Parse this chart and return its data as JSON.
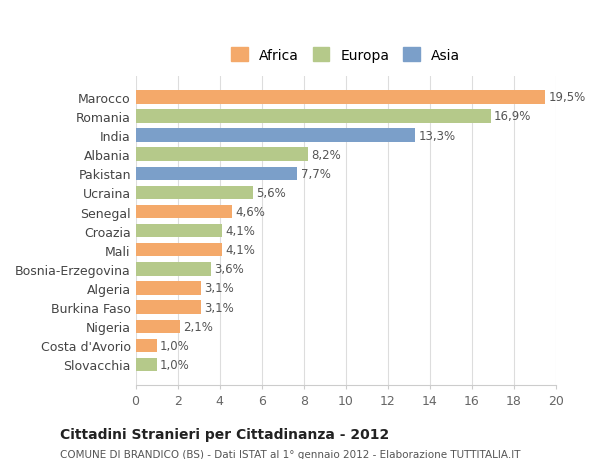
{
  "countries": [
    "Marocco",
    "Romania",
    "India",
    "Albania",
    "Pakistan",
    "Ucraina",
    "Senegal",
    "Croazia",
    "Mali",
    "Bosnia-Erzegovina",
    "Algeria",
    "Burkina Faso",
    "Nigeria",
    "Costa d'Avorio",
    "Slovacchia"
  ],
  "values": [
    19.5,
    16.9,
    13.3,
    8.2,
    7.7,
    5.6,
    4.6,
    4.1,
    4.1,
    3.6,
    3.1,
    3.1,
    2.1,
    1.0,
    1.0
  ],
  "labels": [
    "19,5%",
    "16,9%",
    "13,3%",
    "8,2%",
    "7,7%",
    "5,6%",
    "4,6%",
    "4,1%",
    "4,1%",
    "3,6%",
    "3,1%",
    "3,1%",
    "2,1%",
    "1,0%",
    "1,0%"
  ],
  "continents": [
    "Africa",
    "Europa",
    "Asia",
    "Europa",
    "Asia",
    "Europa",
    "Africa",
    "Europa",
    "Africa",
    "Europa",
    "Africa",
    "Africa",
    "Africa",
    "Africa",
    "Europa"
  ],
  "colors": {
    "Africa": "#F4A96A",
    "Europa": "#B5C98A",
    "Asia": "#7B9FC9"
  },
  "legend_colors": {
    "Africa": "#F4A96A",
    "Europa": "#B5C98A",
    "Asia": "#7B9FC9"
  },
  "title": "Cittadini Stranieri per Cittadinanza - 2012",
  "subtitle": "COMUNE DI BRANDICO (BS) - Dati ISTAT al 1° gennaio 2012 - Elaborazione TUTTITALIA.IT",
  "xlim": [
    0,
    20
  ],
  "xticks": [
    0,
    2,
    4,
    6,
    8,
    10,
    12,
    14,
    16,
    18,
    20
  ],
  "background_color": "#ffffff",
  "grid_color": "#dddddd"
}
